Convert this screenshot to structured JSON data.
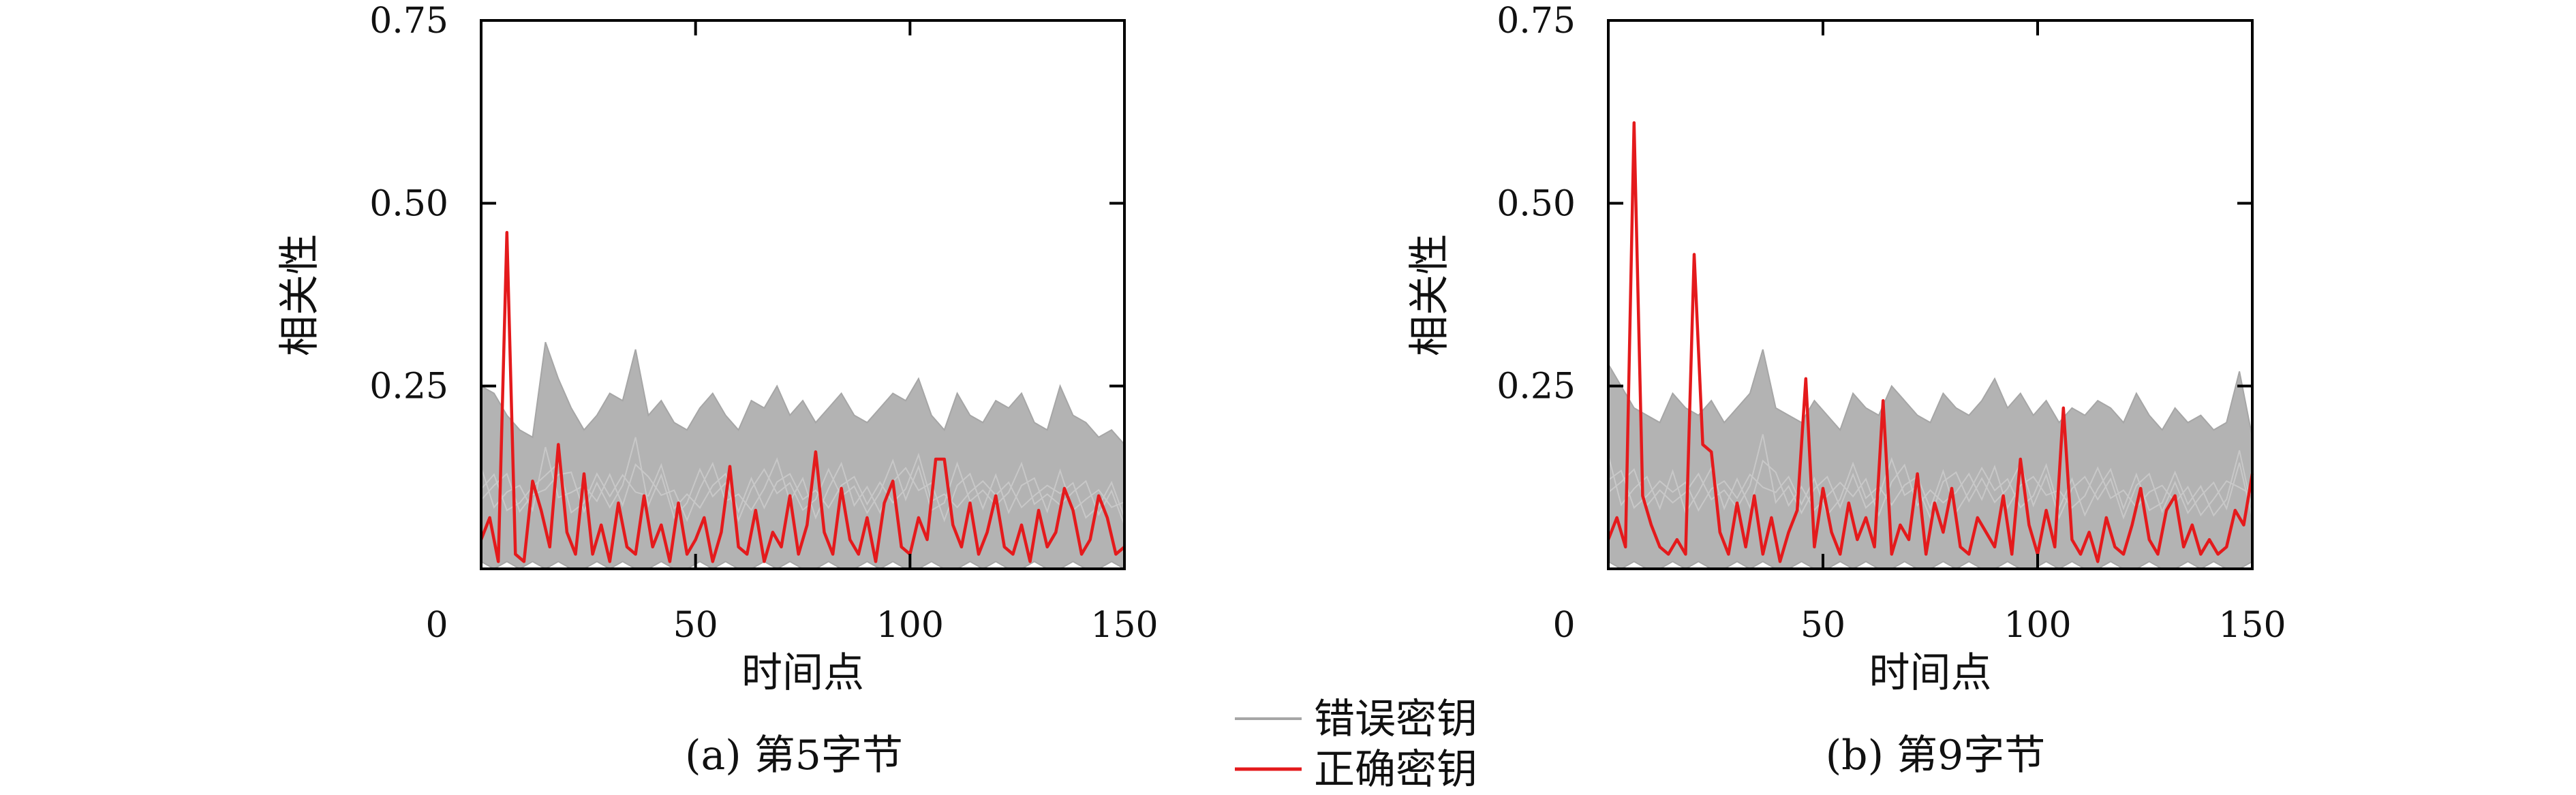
{
  "chart_data": [
    {
      "type": "line",
      "caption": "(a) 第5字节",
      "xlabel": "时间点",
      "ylabel": "相关性",
      "xlim": [
        0,
        150
      ],
      "ylim": [
        0,
        0.75
      ],
      "xticks": [
        "0",
        "50",
        "100",
        "150"
      ],
      "yticks": [
        "0.25",
        "0.50",
        "0.75"
      ],
      "grid": false,
      "series": [
        {
          "name": "错误密钥",
          "color": "#a6a6a6",
          "style": "band",
          "x": [
            0,
            3,
            6,
            9,
            12,
            15,
            18,
            21,
            24,
            27,
            30,
            33,
            36,
            39,
            42,
            45,
            48,
            51,
            54,
            57,
            60,
            63,
            66,
            69,
            72,
            75,
            78,
            81,
            84,
            87,
            90,
            93,
            96,
            99,
            102,
            105,
            108,
            111,
            114,
            117,
            120,
            123,
            126,
            129,
            132,
            135,
            138,
            141,
            144,
            147,
            150
          ],
          "upper": [
            0.25,
            0.24,
            0.21,
            0.19,
            0.18,
            0.31,
            0.26,
            0.22,
            0.19,
            0.21,
            0.24,
            0.23,
            0.3,
            0.21,
            0.23,
            0.2,
            0.19,
            0.22,
            0.24,
            0.21,
            0.19,
            0.23,
            0.22,
            0.25,
            0.21,
            0.23,
            0.2,
            0.22,
            0.24,
            0.21,
            0.2,
            0.22,
            0.24,
            0.23,
            0.26,
            0.21,
            0.19,
            0.24,
            0.21,
            0.2,
            0.23,
            0.22,
            0.24,
            0.2,
            0.19,
            0.25,
            0.21,
            0.2,
            0.18,
            0.19,
            0.17
          ],
          "lower": [
            0.01,
            0.0,
            0.01,
            0.0,
            0.01,
            0.0,
            0.01,
            0.0,
            0.0,
            0.01,
            0.0,
            0.01,
            0.0,
            0.0,
            0.01,
            0.0,
            0.0,
            0.01,
            0.0,
            0.01,
            0.0,
            0.0,
            0.01,
            0.0,
            0.01,
            0.0,
            0.0,
            0.01,
            0.0,
            0.0,
            0.01,
            0.0,
            0.01,
            0.0,
            0.0,
            0.01,
            0.0,
            0.0,
            0.01,
            0.0,
            0.01,
            0.0,
            0.0,
            0.01,
            0.0,
            0.0,
            0.01,
            0.0,
            0.0,
            0.01,
            0.0
          ]
        },
        {
          "name": "正确密钥",
          "color": "#e41a1c",
          "style": "line",
          "x": [
            0,
            2,
            4,
            6,
            8,
            10,
            12,
            14,
            16,
            18,
            20,
            22,
            24,
            26,
            28,
            30,
            32,
            34,
            36,
            38,
            40,
            42,
            44,
            46,
            48,
            50,
            52,
            54,
            56,
            58,
            60,
            62,
            64,
            66,
            68,
            70,
            72,
            74,
            76,
            78,
            80,
            82,
            84,
            86,
            88,
            90,
            92,
            94,
            96,
            98,
            100,
            102,
            104,
            106,
            108,
            110,
            112,
            114,
            116,
            118,
            120,
            122,
            124,
            126,
            128,
            130,
            132,
            134,
            136,
            138,
            140,
            142,
            144,
            146,
            148,
            150
          ],
          "y": [
            0.04,
            0.07,
            0.01,
            0.46,
            0.02,
            0.01,
            0.12,
            0.08,
            0.03,
            0.17,
            0.05,
            0.02,
            0.13,
            0.02,
            0.06,
            0.01,
            0.09,
            0.03,
            0.02,
            0.1,
            0.03,
            0.06,
            0.01,
            0.09,
            0.02,
            0.04,
            0.07,
            0.01,
            0.05,
            0.14,
            0.03,
            0.02,
            0.08,
            0.01,
            0.05,
            0.03,
            0.1,
            0.02,
            0.06,
            0.16,
            0.05,
            0.02,
            0.11,
            0.04,
            0.02,
            0.07,
            0.01,
            0.09,
            0.12,
            0.03,
            0.02,
            0.07,
            0.04,
            0.15,
            0.15,
            0.06,
            0.03,
            0.09,
            0.02,
            0.05,
            0.1,
            0.03,
            0.02,
            0.06,
            0.01,
            0.08,
            0.03,
            0.05,
            0.11,
            0.08,
            0.02,
            0.04,
            0.1,
            0.07,
            0.02,
            0.03
          ]
        }
      ]
    },
    {
      "type": "line",
      "caption": "(b) 第9字节",
      "xlabel": "时间点",
      "ylabel": "相关性",
      "xlim": [
        0,
        150
      ],
      "ylim": [
        0,
        0.75
      ],
      "xticks": [
        "0",
        "50",
        "100",
        "150"
      ],
      "yticks": [
        "0.25",
        "0.50",
        "0.75"
      ],
      "grid": false,
      "series": [
        {
          "name": "错误密钥",
          "color": "#a6a6a6",
          "style": "band",
          "x": [
            0,
            3,
            6,
            9,
            12,
            15,
            18,
            21,
            24,
            27,
            30,
            33,
            36,
            39,
            42,
            45,
            48,
            51,
            54,
            57,
            60,
            63,
            66,
            69,
            72,
            75,
            78,
            81,
            84,
            87,
            90,
            93,
            96,
            99,
            102,
            105,
            108,
            111,
            114,
            117,
            120,
            123,
            126,
            129,
            132,
            135,
            138,
            141,
            144,
            147,
            150
          ],
          "upper": [
            0.28,
            0.25,
            0.22,
            0.21,
            0.2,
            0.24,
            0.22,
            0.21,
            0.23,
            0.2,
            0.22,
            0.24,
            0.3,
            0.22,
            0.21,
            0.2,
            0.23,
            0.21,
            0.19,
            0.24,
            0.22,
            0.21,
            0.25,
            0.23,
            0.21,
            0.2,
            0.24,
            0.22,
            0.21,
            0.23,
            0.26,
            0.22,
            0.24,
            0.21,
            0.23,
            0.2,
            0.22,
            0.21,
            0.23,
            0.22,
            0.2,
            0.24,
            0.21,
            0.19,
            0.22,
            0.2,
            0.21,
            0.19,
            0.2,
            0.27,
            0.18
          ],
          "lower": [
            0.01,
            0.0,
            0.01,
            0.0,
            0.0,
            0.01,
            0.0,
            0.01,
            0.0,
            0.0,
            0.01,
            0.0,
            0.01,
            0.0,
            0.0,
            0.01,
            0.0,
            0.0,
            0.01,
            0.0,
            0.01,
            0.0,
            0.0,
            0.01,
            0.0,
            0.0,
            0.01,
            0.0,
            0.01,
            0.0,
            0.0,
            0.01,
            0.0,
            0.0,
            0.01,
            0.0,
            0.01,
            0.0,
            0.0,
            0.01,
            0.0,
            0.0,
            0.01,
            0.0,
            0.0,
            0.01,
            0.0,
            0.01,
            0.0,
            0.0,
            0.01
          ]
        },
        {
          "name": "正确密钥",
          "color": "#e41a1c",
          "style": "line",
          "x": [
            0,
            2,
            4,
            6,
            8,
            10,
            12,
            14,
            16,
            18,
            20,
            22,
            24,
            26,
            28,
            30,
            32,
            34,
            36,
            38,
            40,
            42,
            44,
            46,
            48,
            50,
            52,
            54,
            56,
            58,
            60,
            62,
            64,
            66,
            68,
            70,
            72,
            74,
            76,
            78,
            80,
            82,
            84,
            86,
            88,
            90,
            92,
            94,
            96,
            98,
            100,
            102,
            104,
            106,
            108,
            110,
            112,
            114,
            116,
            118,
            120,
            122,
            124,
            126,
            128,
            130,
            132,
            134,
            136,
            138,
            140,
            142,
            144,
            146,
            148,
            150
          ],
          "y": [
            0.04,
            0.07,
            0.03,
            0.61,
            0.1,
            0.06,
            0.03,
            0.02,
            0.04,
            0.02,
            0.43,
            0.17,
            0.16,
            0.05,
            0.02,
            0.09,
            0.03,
            0.1,
            0.02,
            0.07,
            0.01,
            0.05,
            0.08,
            0.26,
            0.03,
            0.11,
            0.05,
            0.02,
            0.09,
            0.04,
            0.07,
            0.03,
            0.23,
            0.02,
            0.06,
            0.04,
            0.13,
            0.02,
            0.09,
            0.05,
            0.11,
            0.03,
            0.02,
            0.07,
            0.05,
            0.03,
            0.1,
            0.02,
            0.15,
            0.06,
            0.02,
            0.08,
            0.03,
            0.22,
            0.04,
            0.02,
            0.05,
            0.01,
            0.07,
            0.03,
            0.02,
            0.06,
            0.11,
            0.04,
            0.02,
            0.08,
            0.1,
            0.03,
            0.06,
            0.02,
            0.04,
            0.02,
            0.03,
            0.08,
            0.06,
            0.13
          ]
        }
      ]
    }
  ],
  "legend": {
    "items": [
      {
        "label": "错误密钥",
        "color": "#a6a6a6"
      },
      {
        "label": "正确密钥",
        "color": "#e41a1c"
      }
    ],
    "placement": "bottom-center"
  }
}
